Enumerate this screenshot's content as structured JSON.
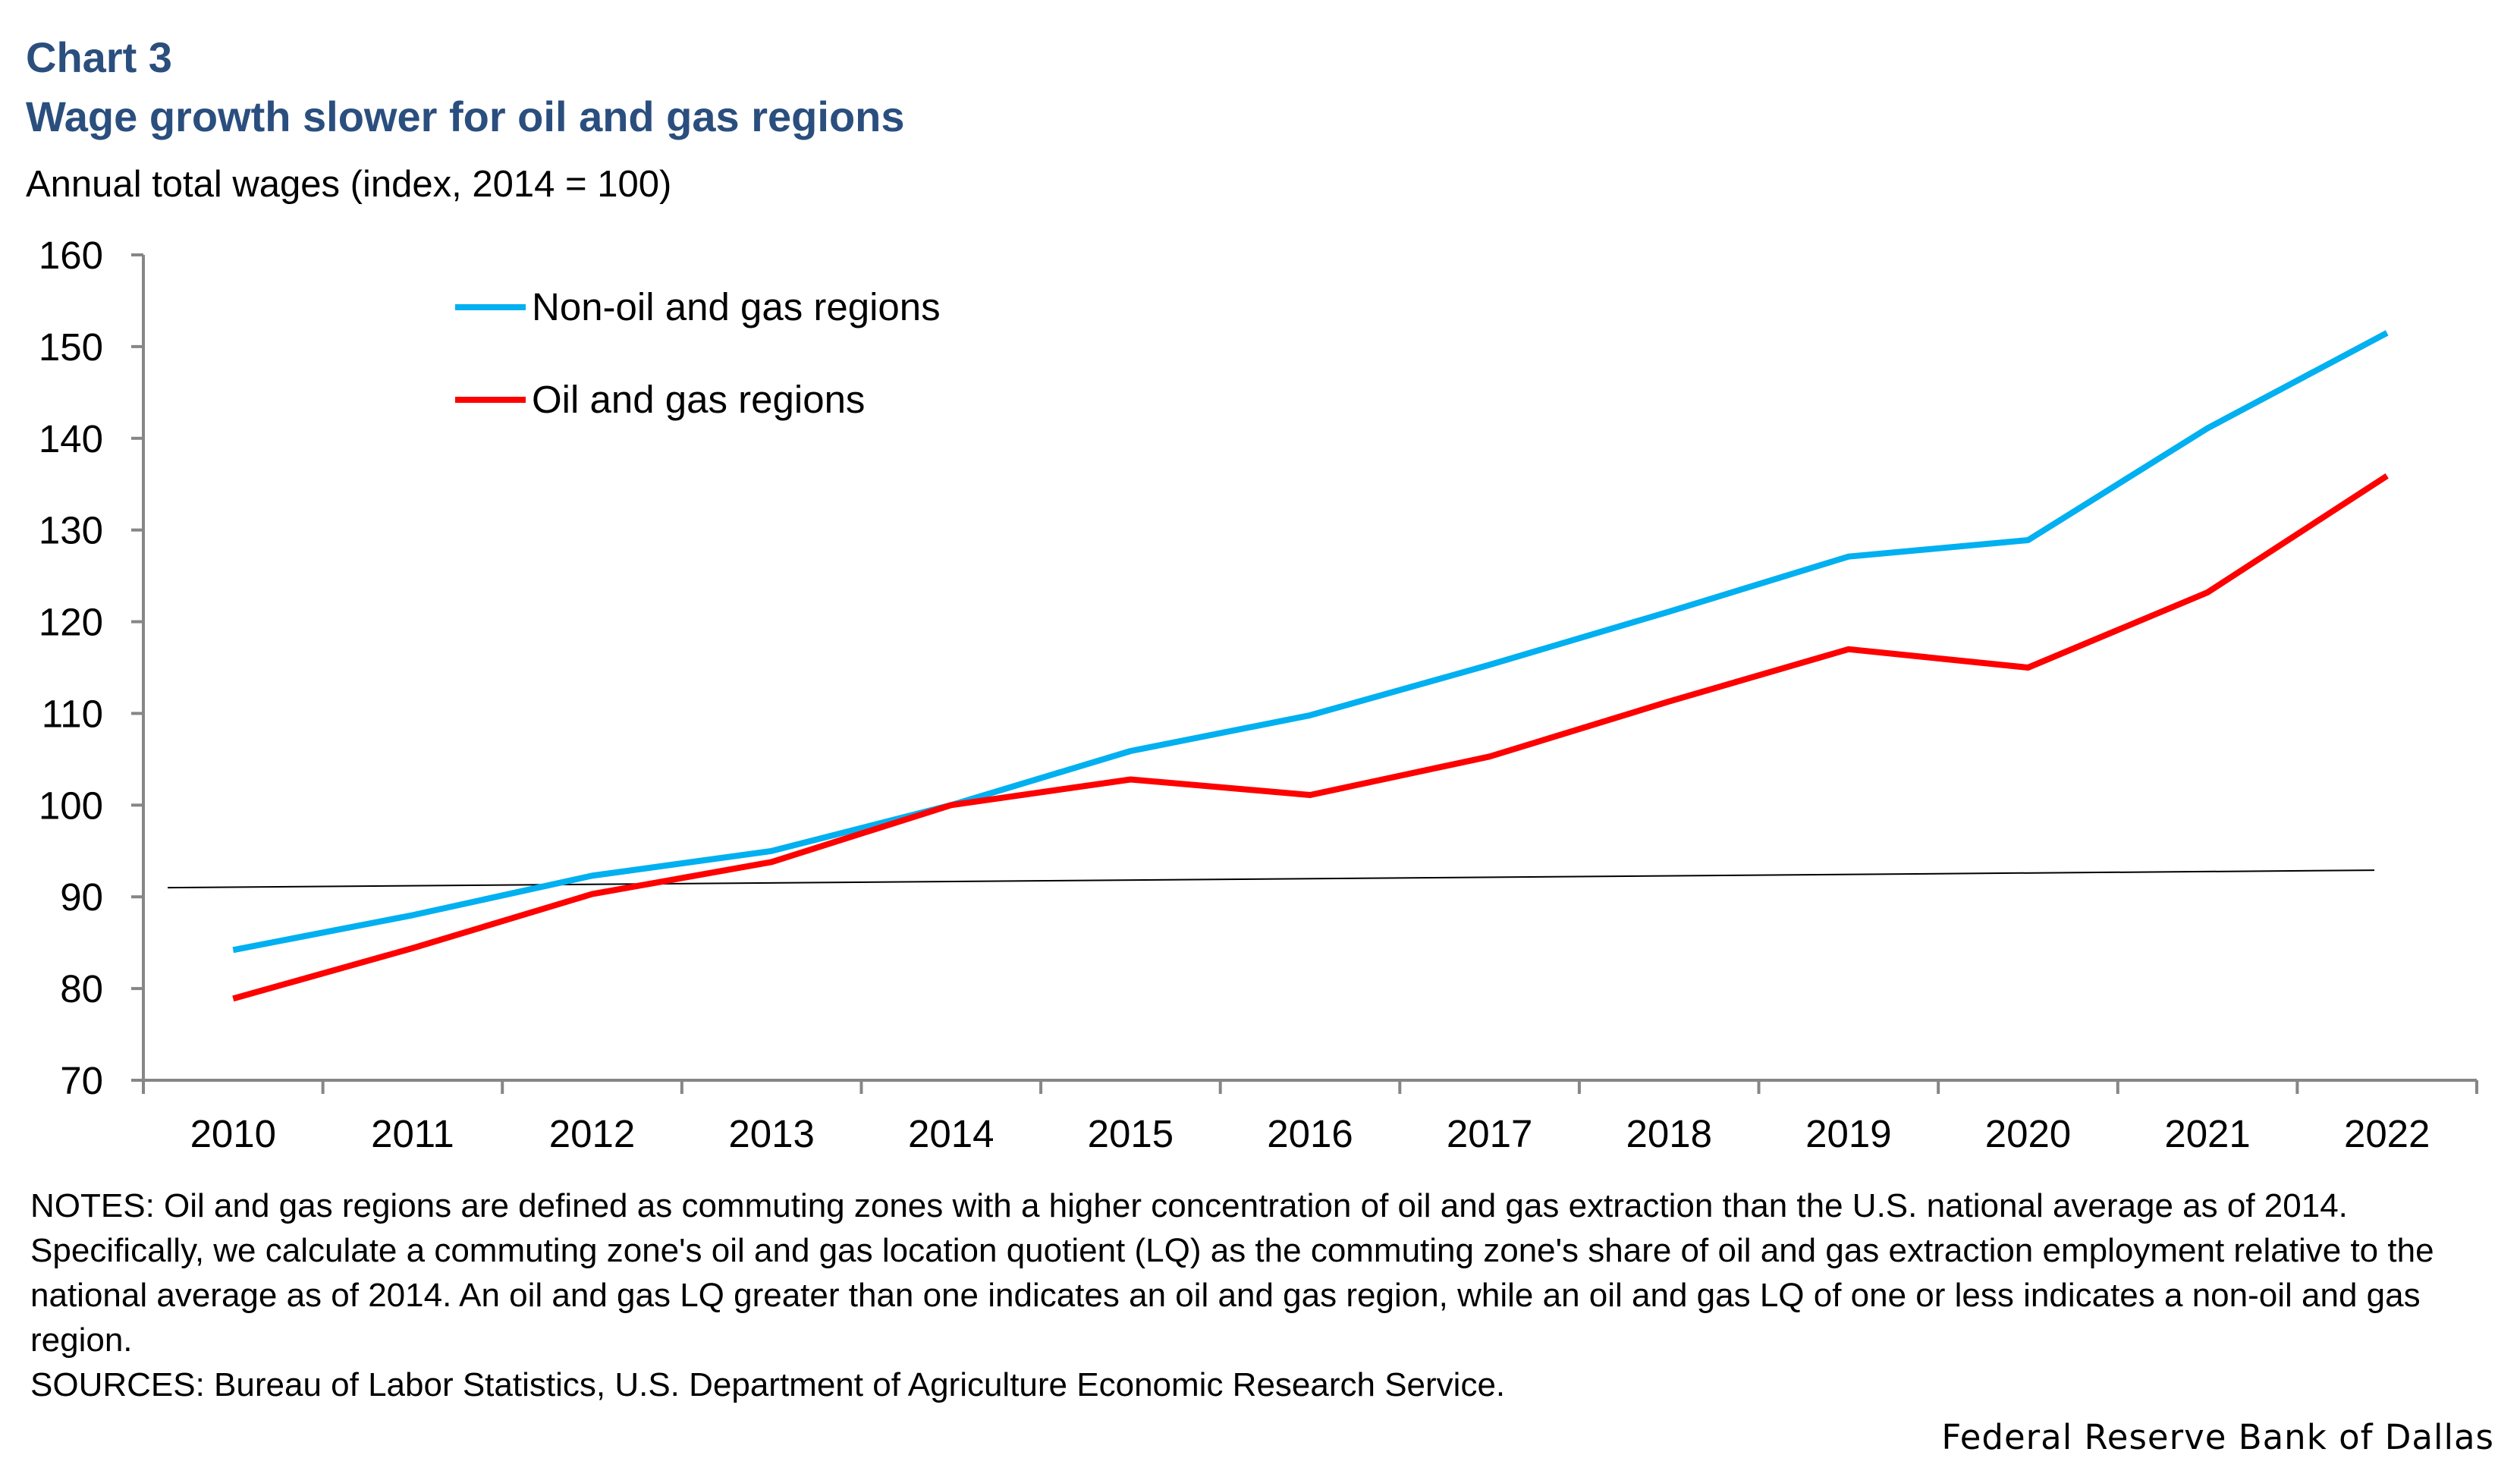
{
  "chart_label": "Chart 3",
  "chart_title": "Wage growth slower for oil and gas regions",
  "y_axis_label": "Annual total wages (index, 2014 = 100)",
  "chart_data": {
    "type": "line",
    "title": "Wage growth slower for oil and gas regions",
    "xlabel": "",
    "ylabel": "Annual total wages (index, 2014 = 100)",
    "ylim": [
      70,
      160
    ],
    "yticks": [
      70,
      80,
      90,
      100,
      110,
      120,
      130,
      140,
      150,
      160
    ],
    "categories": [
      "2010",
      "2011",
      "2012",
      "2013",
      "2014",
      "2015",
      "2016",
      "2017",
      "2018",
      "2019",
      "2020",
      "2021",
      "2022"
    ],
    "series": [
      {
        "name": "Non-oil and gas regions",
        "color": "#00b0f0",
        "values": [
          84.2,
          88.0,
          92.3,
          95.0,
          100.0,
          105.9,
          109.8,
          115.3,
          121.1,
          127.1,
          128.9,
          141.1,
          151.5
        ]
      },
      {
        "name": "Oil and gas regions",
        "color": "#ff0000",
        "values": [
          78.9,
          84.4,
          90.3,
          93.8,
          100.0,
          102.8,
          101.1,
          105.3,
          111.3,
          117.0,
          115.0,
          123.2,
          135.9
        ]
      }
    ],
    "trendline": {
      "name": "",
      "color": "#000000",
      "start_value": 91.0,
      "end_value": 92.9
    },
    "legend_position": "top-left"
  },
  "notes": "NOTES: Oil and gas regions are defined as commuting zones with a higher concentration of oil and gas extraction than the U.S. national average as of 2014. Specifically, we calculate a commuting zone's oil and gas location quotient (LQ) as the commuting zone's share of oil and gas extraction employment relative to the national average as of 2014. An oil and gas LQ greater than one indicates an oil and gas region, while an oil and gas LQ of one or less indicates a non-oil and gas region.",
  "sources": "SOURCES: Bureau of Labor Statistics, U.S. Department of Agriculture Economic Research Service.",
  "credit": "Federal Reserve Bank of Dallas"
}
